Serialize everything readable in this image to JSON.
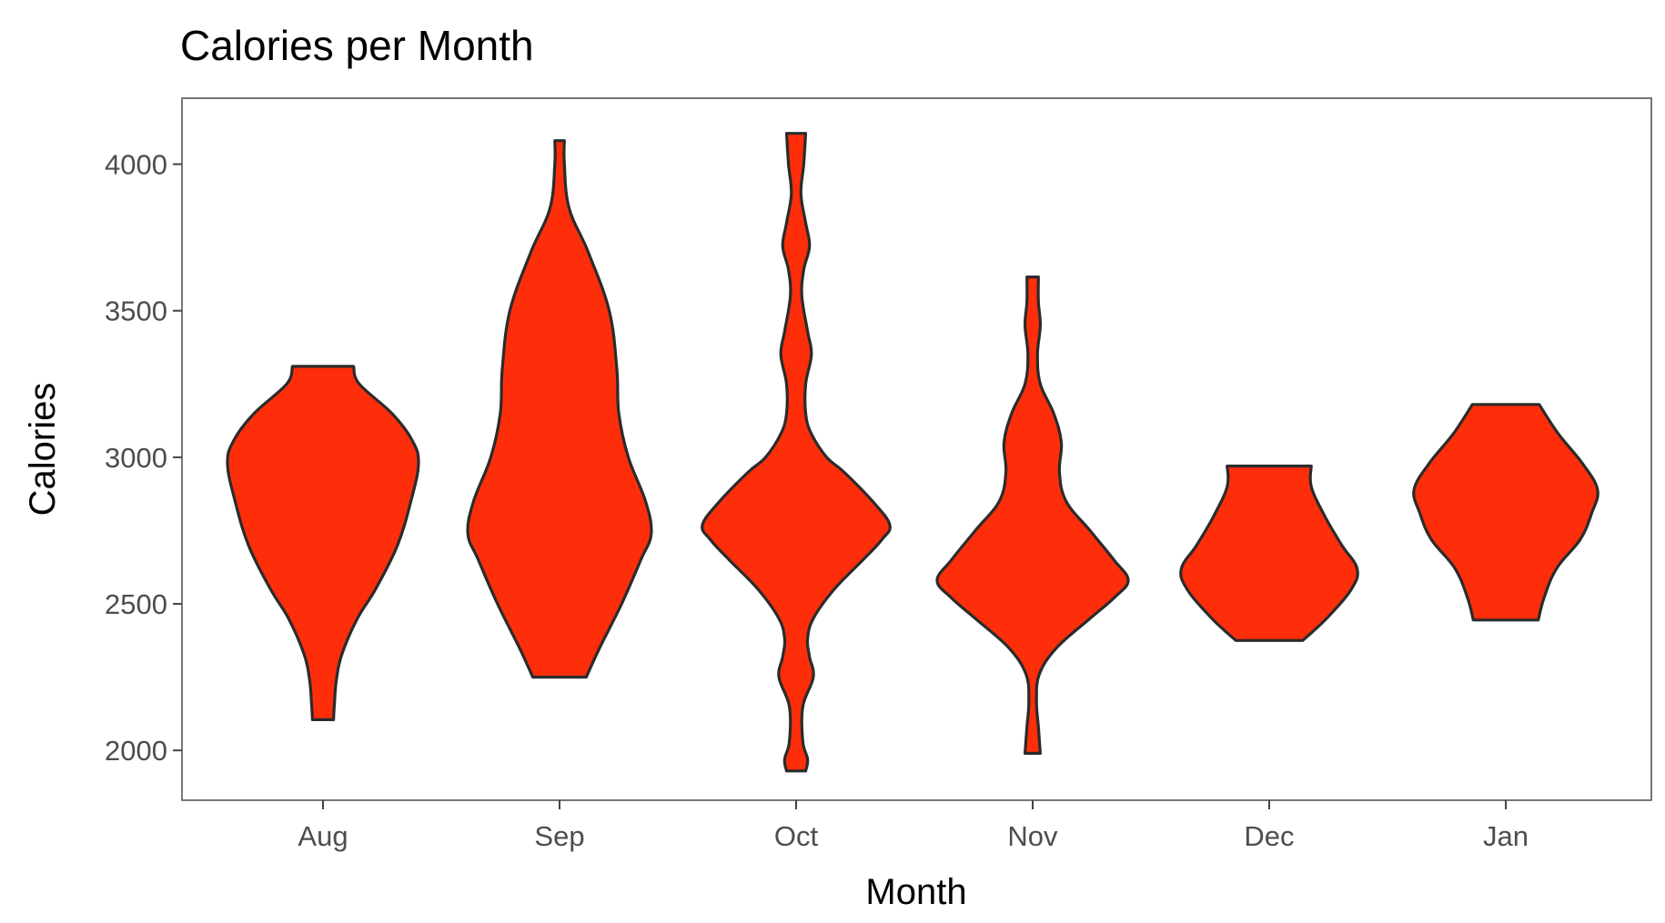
{
  "chart_data": {
    "type": "violin",
    "title": "Calories per Month",
    "xlabel": "Month",
    "ylabel": "Calories",
    "categories": [
      "Aug",
      "Sep",
      "Oct",
      "Nov",
      "Dec",
      "Jan"
    ],
    "yticks": [
      2000,
      2500,
      3000,
      3500,
      4000
    ],
    "ylim": [
      1830,
      4225
    ],
    "fill_color": "#FF2E0A",
    "outline_color": "#2b2b2b",
    "grid": false,
    "legend": "none",
    "series": [
      {
        "category": "Aug",
        "min": 2105,
        "max": 3310,
        "density": [
          [
            2105,
            0.11
          ],
          [
            2160,
            0.12
          ],
          [
            2240,
            0.14
          ],
          [
            2330,
            0.2
          ],
          [
            2450,
            0.36
          ],
          [
            2550,
            0.55
          ],
          [
            2700,
            0.78
          ],
          [
            2850,
            0.92
          ],
          [
            2980,
            1.0
          ],
          [
            3060,
            0.93
          ],
          [
            3150,
            0.72
          ],
          [
            3250,
            0.38
          ],
          [
            3310,
            0.32
          ]
        ]
      },
      {
        "category": "Sep",
        "min": 2250,
        "max": 4080,
        "density": [
          [
            2250,
            0.28
          ],
          [
            2350,
            0.42
          ],
          [
            2500,
            0.65
          ],
          [
            2650,
            0.85
          ],
          [
            2740,
            0.96
          ],
          [
            2850,
            0.9
          ],
          [
            3000,
            0.72
          ],
          [
            3150,
            0.62
          ],
          [
            3300,
            0.6
          ],
          [
            3500,
            0.52
          ],
          [
            3700,
            0.3
          ],
          [
            3850,
            0.1
          ],
          [
            4000,
            0.05
          ],
          [
            4080,
            0.05
          ]
        ]
      },
      {
        "category": "Oct",
        "min": 1930,
        "max": 4105,
        "density": [
          [
            1930,
            0.1
          ],
          [
            1970,
            0.12
          ],
          [
            2030,
            0.07
          ],
          [
            2150,
            0.07
          ],
          [
            2250,
            0.18
          ],
          [
            2320,
            0.14
          ],
          [
            2380,
            0.12
          ],
          [
            2450,
            0.18
          ],
          [
            2550,
            0.4
          ],
          [
            2650,
            0.7
          ],
          [
            2720,
            0.9
          ],
          [
            2770,
            0.98
          ],
          [
            2850,
            0.8
          ],
          [
            2950,
            0.5
          ],
          [
            3000,
            0.32
          ],
          [
            3080,
            0.16
          ],
          [
            3150,
            0.1
          ],
          [
            3250,
            0.1
          ],
          [
            3350,
            0.16
          ],
          [
            3430,
            0.12
          ],
          [
            3550,
            0.06
          ],
          [
            3640,
            0.08
          ],
          [
            3720,
            0.14
          ],
          [
            3800,
            0.1
          ],
          [
            3900,
            0.05
          ],
          [
            4000,
            0.08
          ],
          [
            4105,
            0.1
          ]
        ]
      },
      {
        "category": "Nov",
        "min": 1990,
        "max": 3615,
        "density": [
          [
            1990,
            0.08
          ],
          [
            2080,
            0.06
          ],
          [
            2170,
            0.04
          ],
          [
            2260,
            0.07
          ],
          [
            2350,
            0.25
          ],
          [
            2450,
            0.6
          ],
          [
            2520,
            0.85
          ],
          [
            2580,
            1.0
          ],
          [
            2650,
            0.85
          ],
          [
            2750,
            0.6
          ],
          [
            2850,
            0.35
          ],
          [
            2950,
            0.28
          ],
          [
            3050,
            0.3
          ],
          [
            3150,
            0.22
          ],
          [
            3250,
            0.08
          ],
          [
            3350,
            0.05
          ],
          [
            3450,
            0.08
          ],
          [
            3530,
            0.06
          ],
          [
            3615,
            0.06
          ]
        ]
      },
      {
        "category": "Dec",
        "min": 2375,
        "max": 2970,
        "density": [
          [
            2375,
            0.35
          ],
          [
            2450,
            0.6
          ],
          [
            2550,
            0.86
          ],
          [
            2620,
            0.92
          ],
          [
            2700,
            0.76
          ],
          [
            2800,
            0.58
          ],
          [
            2900,
            0.44
          ],
          [
            2970,
            0.44
          ]
        ]
      },
      {
        "category": "Jan",
        "min": 2445,
        "max": 3180,
        "density": [
          [
            2445,
            0.34
          ],
          [
            2520,
            0.4
          ],
          [
            2620,
            0.53
          ],
          [
            2720,
            0.78
          ],
          [
            2810,
            0.9
          ],
          [
            2890,
            0.96
          ],
          [
            2980,
            0.8
          ],
          [
            3080,
            0.55
          ],
          [
            3180,
            0.35
          ]
        ]
      }
    ]
  }
}
